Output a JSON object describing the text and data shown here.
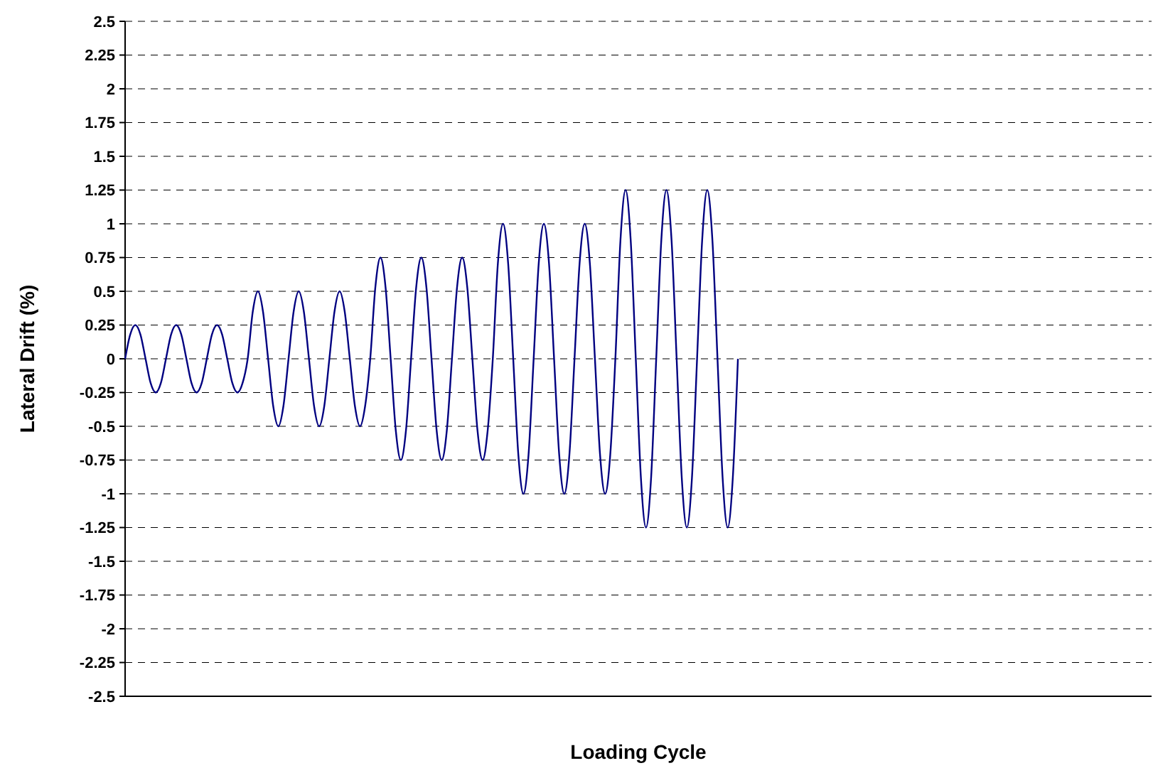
{
  "chart_data": {
    "type": "line",
    "xlabel": "Loading Cycle",
    "ylabel": "Lateral Drift (%)",
    "categories": [
      null,
      null,
      null,
      null,
      null,
      null,
      null,
      null,
      null,
      null,
      null,
      null,
      null,
      null,
      null,
      null,
      null,
      null,
      null,
      null,
      null,
      null,
      null,
      null,
      null,
      null,
      null,
      null,
      null,
      null,
      null,
      null,
      null,
      null,
      null,
      null,
      null,
      null,
      null,
      null,
      null,
      null,
      null,
      null,
      null,
      null,
      null,
      null,
      null,
      null,
      null,
      null,
      null,
      null,
      null,
      null,
      null,
      null,
      null,
      null,
      null,
      null,
      null,
      null,
      null,
      null,
      null,
      null,
      null,
      null,
      null,
      null,
      null,
      null,
      null,
      null,
      null,
      null,
      null,
      null,
      null,
      null,
      null,
      null,
      null,
      null,
      null,
      null,
      null,
      null,
      null,
      null,
      null,
      null,
      null,
      null,
      null,
      null,
      null,
      null,
      null,
      null,
      null,
      null,
      null,
      null,
      null,
      null,
      null,
      null,
      null,
      null,
      null,
      null,
      null,
      null,
      null,
      null,
      null,
      null,
      null,
      null,
      null,
      null,
      null,
      null,
      null,
      null,
      null,
      null,
      null,
      null,
      null,
      null,
      null,
      null,
      null,
      null,
      null,
      null,
      null,
      null,
      null,
      null,
      null,
      null,
      null,
      null,
      null,
      null,
      null,
      null,
      null,
      null,
      null,
      null,
      null,
      null,
      null,
      null,
      null,
      null,
      null,
      null,
      null,
      null,
      null,
      null,
      null,
      null,
      null,
      null,
      null,
      null,
      null,
      null,
      null,
      null,
      null,
      null,
      null,
      null,
      null,
      null,
      null,
      null,
      null,
      null,
      null,
      null,
      null,
      null,
      null,
      null,
      null,
      null,
      null,
      null,
      null,
      null,
      null,
      null
    ],
    "series": [
      {
        "color": "#000080",
        "values": [
          0,
          0.18,
          0.25,
          0.18,
          0,
          -0.18,
          -0.25,
          -0.18,
          0,
          0.18,
          0.25,
          0.18,
          0,
          -0.18,
          -0.25,
          -0.18,
          0,
          0.18,
          0.25,
          0.18,
          0,
          -0.18,
          -0.25,
          -0.18,
          0,
          0.35,
          0.5,
          0.35,
          0,
          -0.35,
          -0.5,
          -0.35,
          0,
          0.35,
          0.5,
          0.35,
          0,
          -0.35,
          -0.5,
          -0.35,
          0,
          0.35,
          0.5,
          0.35,
          0,
          -0.35,
          -0.5,
          -0.35,
          0,
          0.53,
          0.75,
          0.53,
          0,
          -0.53,
          -0.75,
          -0.53,
          0,
          0.53,
          0.75,
          0.53,
          0,
          -0.53,
          -0.75,
          -0.53,
          0,
          0.53,
          0.75,
          0.53,
          0,
          -0.53,
          -0.75,
          -0.53,
          0,
          0.71,
          1,
          0.71,
          0,
          -0.71,
          -1,
          -0.71,
          0,
          0.71,
          1,
          0.71,
          0,
          -0.71,
          -1,
          -0.71,
          0,
          0.71,
          1,
          0.71,
          0,
          -0.71,
          -1,
          -0.71,
          0,
          0.88,
          1.25,
          0.88,
          0,
          -0.88,
          -1.25,
          -0.88,
          0,
          0.88,
          1.25,
          0.88,
          0,
          -0.88,
          -1.25,
          -0.88,
          0,
          0.88,
          1.25,
          0.88,
          0,
          -0.88,
          -1.25,
          -0.88,
          0,
          null,
          null,
          null,
          null,
          null,
          null,
          null,
          null,
          null,
          null,
          null,
          null,
          null,
          null,
          null,
          null,
          null,
          null,
          null,
          null,
          null,
          null,
          null,
          null,
          null,
          null,
          null,
          null,
          null,
          null,
          null,
          null,
          null,
          null,
          null,
          null,
          null,
          null,
          null,
          null,
          null,
          null,
          null,
          null,
          null,
          null,
          null,
          null,
          null,
          null,
          null,
          null,
          null,
          null,
          null,
          null,
          null,
          null,
          null,
          null,
          null,
          null,
          null,
          null,
          null,
          null,
          null,
          null,
          null,
          null,
          null,
          null,
          null,
          null,
          null,
          null,
          null,
          null,
          null,
          null,
          null
        ]
      }
    ],
    "ylim": [
      -2.5,
      2.5
    ],
    "yticks": [
      -2.5,
      -2.25,
      -2,
      -1.75,
      -1.5,
      -1.25,
      -1,
      -0.75,
      -0.5,
      -0.25,
      0,
      0.25,
      0.5,
      0.75,
      1,
      1.25,
      1.5,
      1.75,
      2,
      2.25,
      2.5
    ],
    "grid": "y",
    "marker": "none",
    "line_style": "solid",
    "tick_labels": "y"
  }
}
